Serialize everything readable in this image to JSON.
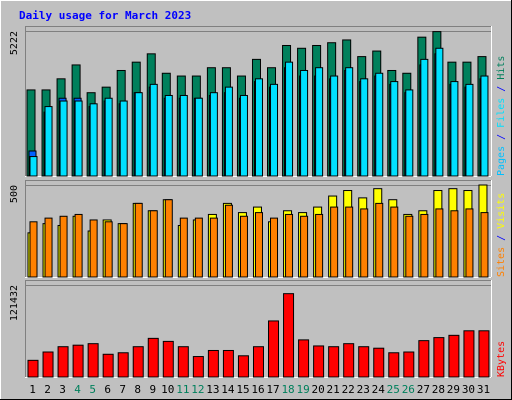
{
  "title": "Daily usage for March 2023",
  "colors": {
    "background": "#c0c0c0",
    "hits": "#00805c",
    "files": "#00e0ff",
    "pages": "#00c0ff",
    "visits": "#ffff00",
    "sites": "#ff8000",
    "kbytes": "#ff0000",
    "title": "#0000ff",
    "weekend_day": "#00805c"
  },
  "chart_data": [
    {
      "type": "bar",
      "panel": "hits-files-pages",
      "ymax_label": "5222",
      "ymax": 5222,
      "right_label_parts": [
        {
          "text": "Pages",
          "color_key": "pages"
        },
        {
          "text": " / ",
          "color_key": "title"
        },
        {
          "text": "Files",
          "color_key": "files"
        },
        {
          "text": " / ",
          "color_key": "title"
        },
        {
          "text": "Hits",
          "color_key": "hits"
        }
      ],
      "categories": [
        "1",
        "2",
        "3",
        "4",
        "5",
        "6",
        "7",
        "8",
        "9",
        "10",
        "11",
        "12",
        "13",
        "14",
        "15",
        "16",
        "17",
        "18",
        "19",
        "20",
        "21",
        "22",
        "23",
        "24",
        "25",
        "26",
        "27",
        "28",
        "29",
        "30",
        "31"
      ],
      "series": [
        {
          "name": "Hits",
          "color_key": "hits",
          "values": [
            3100,
            3100,
            3500,
            4000,
            3000,
            3200,
            3800,
            4100,
            4400,
            3700,
            3600,
            3600,
            3900,
            3900,
            3600,
            4200,
            3900,
            4700,
            4600,
            4700,
            4800,
            4900,
            4300,
            4500,
            3800,
            3700,
            5000,
            5200,
            4100,
            4100,
            4300
          ]
        },
        {
          "name": "Files",
          "color_key": "files",
          "values": [
            700,
            2500,
            2700,
            2700,
            2600,
            2800,
            2700,
            3000,
            3300,
            2900,
            2900,
            2800,
            3000,
            3200,
            2900,
            3500,
            3300,
            4100,
            3800,
            3900,
            3600,
            3900,
            3500,
            3700,
            3400,
            3100,
            4200,
            4600,
            3400,
            3300,
            3600
          ]
        },
        {
          "name": "Pages",
          "color_key": "pages",
          "values": [
            900,
            2300,
            2800,
            2800,
            2500,
            2700,
            2600,
            3000,
            3200,
            2800,
            2800,
            2800,
            2900,
            3000,
            2800,
            3400,
            3200,
            3900,
            3600,
            3600,
            3500,
            3800,
            3400,
            3600,
            3300,
            3000,
            4000,
            4400,
            3300,
            3200,
            3500
          ]
        }
      ]
    },
    {
      "type": "bar",
      "panel": "visits-sites",
      "ymax_label": "500",
      "ymax": 500,
      "right_label_parts": [
        {
          "text": "Sites",
          "color_key": "sites"
        },
        {
          "text": " / ",
          "color_key": "title"
        },
        {
          "text": "Visits",
          "color_key": "visits"
        }
      ],
      "categories": [
        "1",
        "2",
        "3",
        "4",
        "5",
        "6",
        "7",
        "8",
        "9",
        "10",
        "11",
        "12",
        "13",
        "14",
        "15",
        "16",
        "17",
        "18",
        "19",
        "20",
        "21",
        "22",
        "23",
        "24",
        "25",
        "26",
        "27",
        "28",
        "29",
        "30",
        "31"
      ],
      "series": [
        {
          "name": "Visits",
          "color_key": "visits",
          "values": [
            240,
            290,
            280,
            330,
            250,
            310,
            290,
            400,
            360,
            420,
            280,
            310,
            340,
            400,
            350,
            380,
            300,
            360,
            350,
            380,
            440,
            470,
            430,
            480,
            420,
            340,
            360,
            470,
            480,
            470,
            500
          ]
        },
        {
          "name": "Sites",
          "color_key": "sites",
          "values": [
            300,
            320,
            330,
            340,
            310,
            300,
            290,
            400,
            360,
            420,
            320,
            320,
            320,
            390,
            330,
            350,
            320,
            340,
            330,
            340,
            380,
            380,
            370,
            400,
            380,
            330,
            340,
            370,
            360,
            370,
            350
          ]
        }
      ]
    },
    {
      "type": "bar",
      "panel": "kbytes",
      "ymax_label": "121432",
      "ymax": 121432,
      "right_label_parts": [
        {
          "text": "KBytes",
          "color_key": "kbytes"
        }
      ],
      "categories": [
        "1",
        "2",
        "3",
        "4",
        "5",
        "6",
        "7",
        "8",
        "9",
        "10",
        "11",
        "12",
        "13",
        "14",
        "15",
        "16",
        "17",
        "18",
        "19",
        "20",
        "21",
        "22",
        "23",
        "24",
        "25",
        "26",
        "27",
        "28",
        "29",
        "30",
        "31"
      ],
      "series": [
        {
          "name": "KBytes",
          "color_key": "kbytes",
          "values": [
            22000,
            33000,
            40000,
            42000,
            44000,
            30000,
            32000,
            40000,
            51000,
            47000,
            40000,
            27000,
            35000,
            35000,
            28000,
            40000,
            74000,
            110000,
            49000,
            41000,
            40000,
            44000,
            40000,
            38000,
            32000,
            33000,
            48000,
            52000,
            55000,
            61000,
            61000
          ]
        }
      ]
    }
  ],
  "x_labels": [
    {
      "label": "1",
      "weekend": false
    },
    {
      "label": "2",
      "weekend": false
    },
    {
      "label": "3",
      "weekend": false
    },
    {
      "label": "4",
      "weekend": true
    },
    {
      "label": "5",
      "weekend": true
    },
    {
      "label": "6",
      "weekend": false
    },
    {
      "label": "7",
      "weekend": false
    },
    {
      "label": "8",
      "weekend": false
    },
    {
      "label": "9",
      "weekend": false
    },
    {
      "label": "10",
      "weekend": false
    },
    {
      "label": "11",
      "weekend": true
    },
    {
      "label": "12",
      "weekend": true
    },
    {
      "label": "13",
      "weekend": false
    },
    {
      "label": "14",
      "weekend": false
    },
    {
      "label": "15",
      "weekend": false
    },
    {
      "label": "16",
      "weekend": false
    },
    {
      "label": "17",
      "weekend": false
    },
    {
      "label": "18",
      "weekend": true
    },
    {
      "label": "19",
      "weekend": true
    },
    {
      "label": "20",
      "weekend": false
    },
    {
      "label": "21",
      "weekend": false
    },
    {
      "label": "22",
      "weekend": false
    },
    {
      "label": "23",
      "weekend": false
    },
    {
      "label": "24",
      "weekend": false
    },
    {
      "label": "25",
      "weekend": true
    },
    {
      "label": "26",
      "weekend": true
    },
    {
      "label": "27",
      "weekend": false
    },
    {
      "label": "28",
      "weekend": false
    },
    {
      "label": "29",
      "weekend": false
    },
    {
      "label": "30",
      "weekend": false
    },
    {
      "label": "31",
      "weekend": false
    }
  ]
}
